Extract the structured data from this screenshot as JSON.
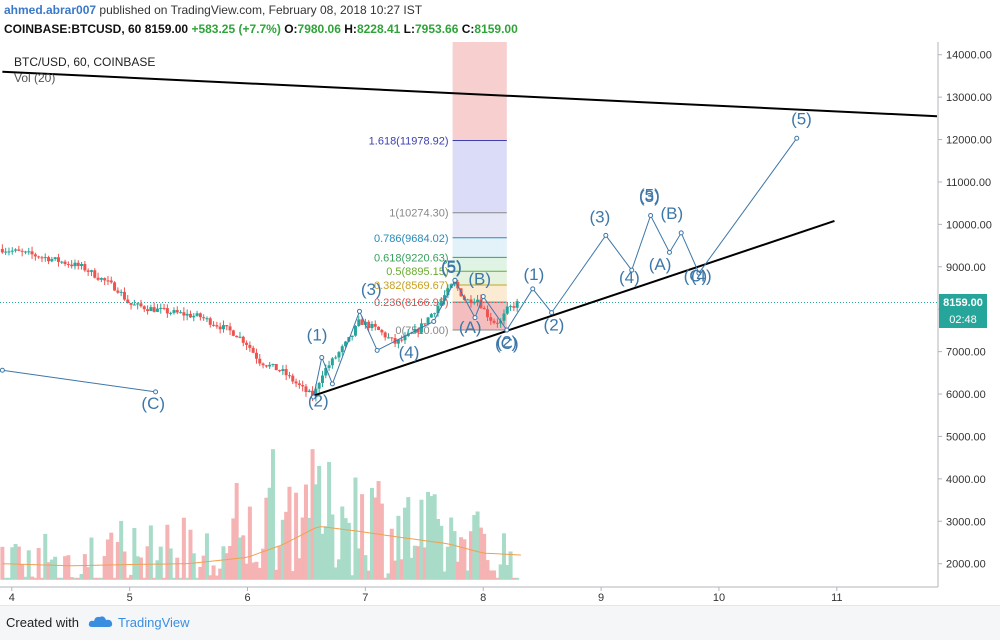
{
  "header": {
    "user": "ahmed.abrar007",
    "published_text": "published on TradingView.com, February 08, 2018 10:27 IST",
    "symbol_line": "COINBASE:BTCUSD, 60",
    "last": "8159.00",
    "change": "+583.25 (+7.7%)",
    "o_label": "O:",
    "o_value": "7980.06",
    "h_label": "H:",
    "h_value": "8228.41",
    "l_label": "L:",
    "l_value": "7953.66",
    "c_label": "C:",
    "c_value": "8159.00"
  },
  "legend": {
    "title": "BTC/USD, 60, COINBASE",
    "indicator": "Vol (20)"
  },
  "price_tag": {
    "value": "8159.00",
    "countdown": "02:48"
  },
  "footer": {
    "created": "Created with",
    "brand": "TradingView"
  },
  "colors": {
    "up": "#26a69a",
    "down": "#ef5350",
    "wave": "#3d77a8",
    "trend": "#000000",
    "fib_text": "#5b6cc9"
  },
  "chart_data": {
    "type": "candlestick",
    "x_ticks": [
      "4",
      "5",
      "6",
      "7",
      "8",
      "9",
      "10",
      "11"
    ],
    "x_tick_values": [
      4,
      5,
      6,
      7,
      8,
      9,
      10,
      11
    ],
    "y_ticks": [
      "2000.00",
      "3000.00",
      "4000.00",
      "5000.00",
      "6000.00",
      "7000.00",
      "8000.00",
      "9000.00",
      "10000.00",
      "11000.00",
      "12000.00",
      "13000.00",
      "14000.00"
    ],
    "y_tick_values": [
      2000,
      3000,
      4000,
      5000,
      6000,
      7000,
      8000,
      9000,
      10000,
      11000,
      12000,
      13000,
      14000
    ],
    "xlim": [
      3.9,
      11.85
    ],
    "ylim": [
      1450,
      14300
    ],
    "grid": false,
    "price_key": [
      [
        3.92,
        9420
      ],
      [
        4.3,
        9210
      ],
      [
        4.6,
        8990
      ],
      [
        4.9,
        8470
      ],
      [
        5.0,
        8110
      ],
      [
        5.3,
        7950
      ],
      [
        5.6,
        7820
      ],
      [
        5.9,
        7420
      ],
      [
        6.0,
        7180
      ],
      [
        6.1,
        6780
      ],
      [
        6.3,
        6520
      ],
      [
        6.48,
        6090
      ],
      [
        6.56,
        5930
      ],
      [
        6.63,
        6480
      ],
      [
        6.75,
        6880
      ],
      [
        6.88,
        7350
      ],
      [
        6.95,
        7720
      ],
      [
        7.1,
        7520
      ],
      [
        7.25,
        7200
      ],
      [
        7.32,
        7280
      ],
      [
        7.45,
        7520
      ],
      [
        7.6,
        8020
      ],
      [
        7.75,
        8630
      ],
      [
        7.85,
        8200
      ],
      [
        7.95,
        8250
      ],
      [
        8.02,
        7920
      ],
      [
        8.08,
        7710
      ],
      [
        8.15,
        7700
      ],
      [
        8.2,
        7980
      ],
      [
        8.3,
        8160
      ]
    ],
    "volume_key": [
      [
        3.92,
        1850
      ],
      [
        4.5,
        1950
      ],
      [
        5.0,
        2100
      ],
      [
        5.5,
        2000
      ],
      [
        5.9,
        2200
      ],
      [
        6.1,
        2800
      ],
      [
        6.3,
        3100
      ],
      [
        6.45,
        3400
      ],
      [
        6.6,
        3200
      ],
      [
        6.8,
        2900
      ],
      [
        7.0,
        3300
      ],
      [
        7.2,
        2800
      ],
      [
        7.5,
        2600
      ],
      [
        7.8,
        2500
      ],
      [
        8.1,
        2200
      ],
      [
        8.35,
        1900
      ]
    ],
    "volume_ma": [
      [
        3.92,
        2000
      ],
      [
        4.5,
        1950
      ],
      [
        5.0,
        1980
      ],
      [
        5.5,
        2000
      ],
      [
        6.0,
        2150
      ],
      [
        6.3,
        2450
      ],
      [
        6.6,
        2880
      ],
      [
        6.9,
        2780
      ],
      [
        7.3,
        2620
      ],
      [
        7.7,
        2470
      ],
      [
        8.0,
        2250
      ],
      [
        8.35,
        2200
      ]
    ],
    "fib_levels": [
      {
        "label": "0(7510.00)",
        "value": 7510
      },
      {
        "label": "0.236(8166.98)",
        "value": 8166.98
      },
      {
        "label": "0.382(8569.67)",
        "value": 8569.67
      },
      {
        "label": "0.5(8895.15)",
        "value": 8895.15
      },
      {
        "label": "0.618(9220.63)",
        "value": 9220.63
      },
      {
        "label": "0.786(9684.02)",
        "value": 9684.02
      },
      {
        "label": "1(10274.30)",
        "value": 10274.3
      },
      {
        "label": "1.618(11978.92)",
        "value": 11978.92
      }
    ],
    "fib_x_range": [
      7.74,
      8.2
    ],
    "fib_colors": [
      "#f0a8a8",
      "#fbe4c4",
      "#dcefd3",
      "#d6f0dc",
      "#d9eef6",
      "#dde0f4",
      "#cfd1f6"
    ],
    "trendlines": [
      {
        "from": [
          3.92,
          13600
        ],
        "to": [
          11.85,
          12550
        ]
      },
      {
        "from": [
          6.56,
          5960
        ],
        "to": [
          10.98,
          10080
        ]
      }
    ],
    "waves": [
      [
        [
          6.56,
          5930
        ],
        [
          6.63,
          6860
        ],
        [
          6.72,
          6240
        ],
        [
          6.95,
          7950
        ],
        [
          7.1,
          7030
        ],
        [
          7.58,
          7710
        ],
        [
          7.76,
          8680
        ]
      ],
      [
        [
          7.76,
          8680
        ],
        [
          7.93,
          7800
        ],
        [
          8.0,
          8300
        ],
        [
          8.2,
          7510
        ]
      ],
      [
        [
          8.2,
          7510
        ],
        [
          8.42,
          8480
        ],
        [
          8.58,
          7920
        ],
        [
          9.04,
          9740
        ],
        [
          9.26,
          8920
        ],
        [
          9.42,
          10210
        ],
        [
          9.58,
          9340
        ],
        [
          9.68,
          9800
        ],
        [
          9.83,
          8850
        ],
        [
          10.66,
          12030
        ]
      ],
      [
        [
          3.92,
          6560
        ],
        [
          5.22,
          6050
        ]
      ]
    ],
    "wave_labels": [
      {
        "text": "(1)",
        "x": 6.59,
        "y": 7260
      },
      {
        "text": "(2)",
        "x": 6.6,
        "y": 5700
      },
      {
        "text": "(3)",
        "x": 7.05,
        "y": 8330
      },
      {
        "text": "(4)",
        "x": 7.37,
        "y": 6850
      },
      {
        "text": "(5)",
        "x": 7.73,
        "y": 8880
      },
      {
        "text": "(5)",
        "x": 7.73,
        "y": 8850
      },
      {
        "text": "(B)",
        "x": 7.97,
        "y": 8580
      },
      {
        "text": "(A)",
        "x": 7.89,
        "y": 7440
      },
      {
        "text": "(C)",
        "x": 8.2,
        "y": 7060
      },
      {
        "text": "(2)",
        "x": 8.2,
        "y": 7100
      },
      {
        "text": "(1)",
        "x": 8.43,
        "y": 8690
      },
      {
        "text": "(2)",
        "x": 8.6,
        "y": 7500
      },
      {
        "text": "(3)",
        "x": 8.99,
        "y": 10050
      },
      {
        "text": "(4)",
        "x": 9.24,
        "y": 8620
      },
      {
        "text": "(5)",
        "x": 9.41,
        "y": 10560
      },
      {
        "text": "(3)",
        "x": 9.41,
        "y": 10530
      },
      {
        "text": "(A)",
        "x": 9.5,
        "y": 8930
      },
      {
        "text": "(B)",
        "x": 9.6,
        "y": 10130
      },
      {
        "text": "(C)",
        "x": 9.8,
        "y": 8650
      },
      {
        "text": "(4)",
        "x": 9.85,
        "y": 8650
      },
      {
        "text": "(5)",
        "x": 10.7,
        "y": 12350
      },
      {
        "text": "(C)",
        "x": 5.2,
        "y": 5650
      }
    ]
  }
}
